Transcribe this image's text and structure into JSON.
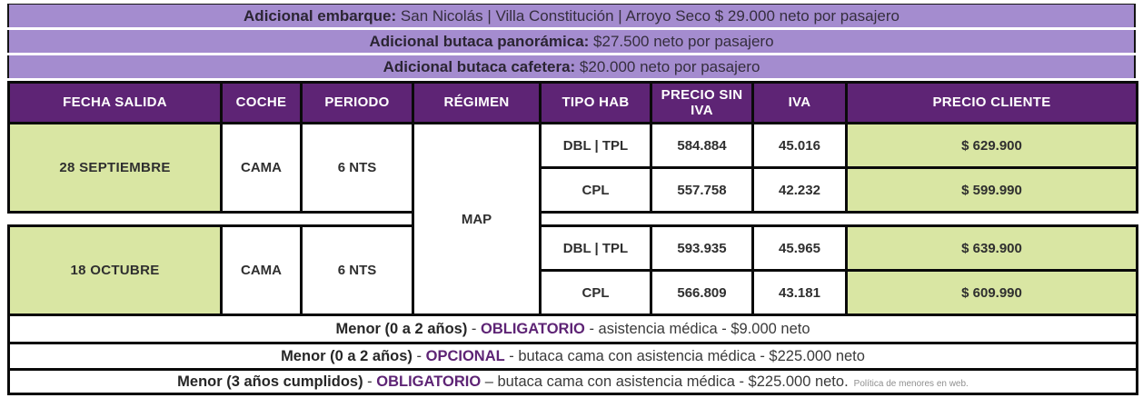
{
  "colors": {
    "lavender_banner": "#a48ccf",
    "header_purple": "#5e2475",
    "highlight_green": "#d9e6a3",
    "tag_purple": "#5e2475"
  },
  "adicionales": [
    {
      "label": "Adicional embarque:",
      "text": " San Nicolás | Villa Constitución | Arroyo Seco $ 29.000 neto por pasajero"
    },
    {
      "label": "Adicional butaca panorámica:",
      "text": " $27.500 neto por pasajero"
    },
    {
      "label": "Adicional butaca cafetera:",
      "text": " $20.000 neto por pasajero"
    }
  ],
  "table": {
    "headers": [
      "FECHA SALIDA",
      "COCHE",
      "PERIODO",
      "RÉGIMEN",
      "TIPO HAB",
      "PRECIO SIN IVA",
      "IVA",
      "PRECIO CLIENTE"
    ]
  },
  "regimen": "MAP",
  "departures": [
    {
      "fecha": "28 SEPTIEMBRE",
      "coche": "CAMA",
      "periodo": "6 NTS",
      "rows": [
        {
          "tipo_hab": "DBL | TPL",
          "precio_sin_iva": "584.884",
          "iva": "45.016",
          "precio_cliente": "$ 629.900"
        },
        {
          "tipo_hab": "CPL",
          "precio_sin_iva": "557.758",
          "iva": "42.232",
          "precio_cliente": "$ 599.990"
        }
      ]
    },
    {
      "fecha": "18 OCTUBRE",
      "coche": "CAMA",
      "periodo": "6 NTS",
      "rows": [
        {
          "tipo_hab": "DBL | TPL",
          "precio_sin_iva": "593.935",
          "iva": "45.965",
          "precio_cliente": "$ 639.900"
        },
        {
          "tipo_hab": "CPL",
          "precio_sin_iva": "566.809",
          "iva": "43.181",
          "precio_cliente": "$ 609.990"
        }
      ]
    }
  ],
  "menores": [
    {
      "prefix": "Menor (0 a 2 años)",
      "sep": " - ",
      "tag": "OBLIGATORIO",
      "rest": " - asistencia médica - $9.000 neto",
      "note": ""
    },
    {
      "prefix": "Menor (0 a 2 años)",
      "sep": " - ",
      "tag": "OPCIONAL",
      "rest": " - butaca cama con asistencia médica - $225.000 neto",
      "note": ""
    },
    {
      "prefix": "Menor (3 años cumplidos)",
      "sep": " - ",
      "tag": "OBLIGATORIO",
      "rest": " – butaca cama con asistencia médica - $225.000 neto.",
      "note": "Política de menores en web."
    }
  ]
}
